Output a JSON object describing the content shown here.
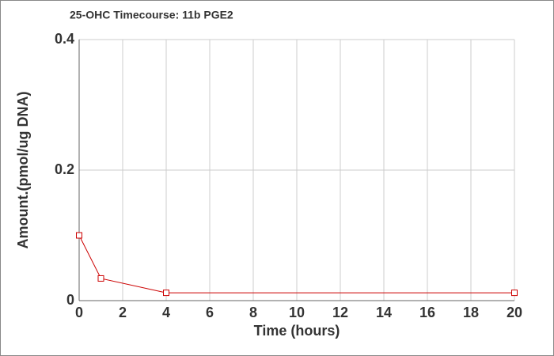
{
  "chart_data": {
    "type": "line",
    "title": "25-OHC Timecourse: 11b PGE2",
    "x_label": "Time (hours)",
    "y_label": "Amount.(pmol/ug DNA)",
    "x": [
      0,
      1,
      4,
      20
    ],
    "series": [
      {
        "name": "11b PGE2",
        "color": "#cc0000",
        "values": [
          0.1,
          0.034,
          0.012,
          0.012
        ]
      }
    ],
    "xlim": [
      0,
      20
    ],
    "xticks": [
      0,
      2,
      4,
      6,
      8,
      10,
      12,
      14,
      16,
      18,
      20
    ],
    "ylim": [
      0,
      0.4
    ],
    "yticks": [
      0,
      0.2,
      0.4
    ],
    "grid": true
  }
}
